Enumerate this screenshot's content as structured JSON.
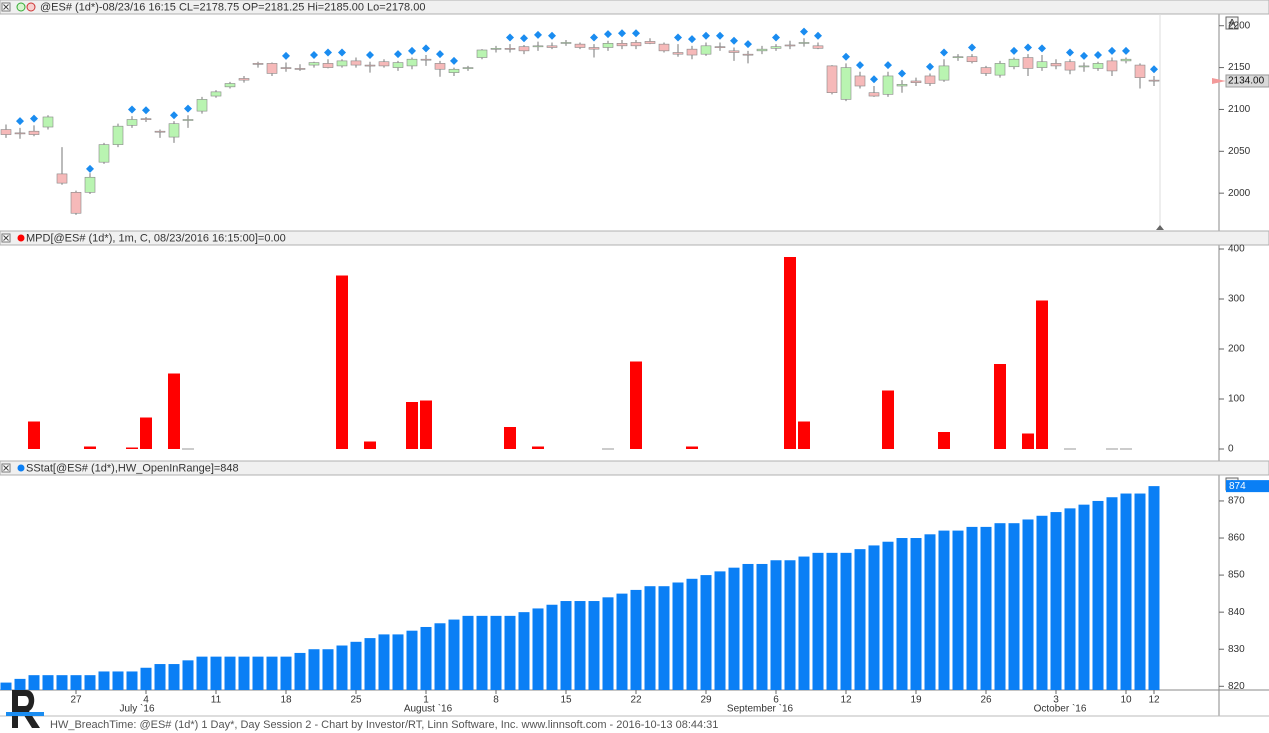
{
  "chart_data": [
    {
      "type": "candlestick",
      "title": "@ES# (1d*)-08/23/16 16:15 CL=2178.75 OP=2181.25 Hi=2185.00 Lo=2178.00",
      "autoscale_button": "A",
      "up_color": "#b9f4b1",
      "down_color": "#f6b9b9",
      "signal_color": "#1a8cf0",
      "open": [
        2076,
        2072,
        2074,
        2079,
        2023,
        2001,
        2001,
        2037,
        2058,
        2081,
        2089,
        2074,
        2067,
        2087,
        2098,
        2116,
        2127,
        2137,
        2155,
        2155,
        2150,
        2149,
        2153,
        2155,
        2152,
        2158,
        2153,
        2157,
        2150,
        2152,
        2160,
        2155,
        2144,
        2149,
        2162,
        2172,
        2173,
        2175,
        2175,
        2176,
        2179,
        2178,
        2174,
        2174,
        2179,
        2180,
        2181.25,
        2178,
        2168,
        2172,
        2166,
        2175,
        2170,
        2166,
        2170,
        2173,
        2177,
        2179,
        2176,
        2152,
        2112,
        2140,
        2120,
        2118,
        2128,
        2134,
        2140,
        2135,
        2162,
        2163,
        2150,
        2141,
        2151,
        2162,
        2150,
        2155,
        2157,
        2151,
        2149,
        2158,
        2158,
        2153,
        2135
      ],
      "high": [
        2082,
        2078,
        2081,
        2093,
        2055,
        2003,
        2024,
        2060,
        2083,
        2092,
        2091,
        2076,
        2086,
        2093,
        2115,
        2123,
        2133,
        2140,
        2157,
        2156,
        2156,
        2154,
        2157,
        2160,
        2160,
        2162,
        2157,
        2160,
        2158,
        2162,
        2165,
        2158,
        2150,
        2152,
        2172,
        2176,
        2178,
        2177,
        2181,
        2180,
        2183,
        2180,
        2178,
        2182,
        2183,
        2183,
        2185,
        2180,
        2178,
        2176,
        2180,
        2180,
        2174,
        2170,
        2176,
        2178,
        2182,
        2185,
        2180,
        2153,
        2155,
        2145,
        2128,
        2145,
        2135,
        2138,
        2143,
        2160,
        2166,
        2166,
        2152,
        2158,
        2162,
        2166,
        2165,
        2160,
        2160,
        2156,
        2157,
        2162,
        2162,
        2155,
        2140
      ],
      "low": [
        2066,
        2065,
        2068,
        2076,
        2010,
        1974,
        1999,
        2035,
        2055,
        2078,
        2085,
        2066,
        2060,
        2078,
        2095,
        2114,
        2125,
        2132,
        2150,
        2140,
        2145,
        2146,
        2150,
        2149,
        2150,
        2150,
        2144,
        2150,
        2146,
        2148,
        2152,
        2139,
        2140,
        2146,
        2160,
        2168,
        2168,
        2166,
        2170,
        2172,
        2176,
        2172,
        2162,
        2170,
        2172,
        2172,
        2178,
        2168,
        2163,
        2160,
        2164,
        2170,
        2158,
        2155,
        2166,
        2170,
        2172,
        2175,
        2172,
        2118,
        2110,
        2125,
        2115,
        2115,
        2120,
        2128,
        2128,
        2133,
        2158,
        2155,
        2140,
        2138,
        2148,
        2140,
        2146,
        2148,
        2142,
        2145,
        2146,
        2140,
        2155,
        2125,
        2128
      ],
      "close": [
        2070,
        2071,
        2070,
        2091,
        2012,
        1976,
        2019,
        2058,
        2080,
        2088,
        2088,
        2073,
        2083,
        2088,
        2112,
        2121,
        2131,
        2135,
        2154,
        2143,
        2149,
        2148,
        2156,
        2150,
        2158,
        2153,
        2152,
        2152,
        2156,
        2160,
        2159,
        2148,
        2148,
        2150,
        2171,
        2173,
        2172,
        2170,
        2176,
        2174,
        2180,
        2174,
        2172,
        2179,
        2176,
        2176,
        2178.75,
        2170,
        2166,
        2165,
        2176,
        2174,
        2168,
        2165,
        2172,
        2175,
        2176,
        2180,
        2173,
        2120,
        2150,
        2128,
        2116,
        2140,
        2130,
        2132,
        2131,
        2152,
        2163,
        2157,
        2143,
        2155,
        2160,
        2149,
        2157,
        2152,
        2147,
        2152,
        2155,
        2146,
        2160,
        2138,
        2134
      ],
      "last_close_label": "2134.00",
      "signals": [
        null,
        2086,
        2089,
        null,
        null,
        null,
        2029,
        null,
        null,
        2100,
        2099,
        null,
        2093,
        2101,
        null,
        null,
        null,
        null,
        null,
        null,
        2164,
        null,
        2165,
        2168,
        2168,
        null,
        2165,
        null,
        2166,
        2170,
        2173,
        2166,
        2158,
        null,
        null,
        null,
        2186,
        2185,
        2189,
        2188,
        null,
        null,
        2186,
        2190,
        2191,
        2191,
        null,
        null,
        2186,
        2184,
        2188,
        2188,
        2182,
        2178,
        null,
        2186,
        null,
        2193,
        2188,
        null,
        2163,
        2153,
        2136,
        2153,
        2143,
        null,
        2151,
        2168,
        null,
        2174,
        null,
        null,
        2170,
        2174,
        2173,
        null,
        2168,
        2164,
        2165,
        2170,
        2170,
        null,
        2148
      ],
      "ylim": [
        1956,
        2214
      ],
      "yticks": [
        2000,
        2050,
        2100,
        2150,
        2200
      ]
    },
    {
      "type": "bar",
      "title": "MPD[@ES# (1d*), 1m, C, 08/23/2016 16:15:00]=0.00",
      "color": "#ff0000",
      "zero_color": "#999999",
      "values": [
        null,
        null,
        55,
        null,
        null,
        null,
        5,
        null,
        null,
        3,
        63,
        null,
        151,
        0,
        null,
        null,
        null,
        null,
        null,
        null,
        null,
        null,
        null,
        null,
        347,
        null,
        15,
        null,
        null,
        94,
        97,
        null,
        null,
        null,
        null,
        null,
        44,
        null,
        5,
        null,
        null,
        null,
        null,
        0,
        null,
        175,
        null,
        null,
        null,
        5,
        null,
        null,
        null,
        null,
        null,
        null,
        384,
        55,
        null,
        null,
        null,
        null,
        null,
        117,
        null,
        null,
        null,
        34,
        null,
        null,
        null,
        170,
        null,
        31,
        297,
        null,
        0,
        null,
        null,
        0,
        0,
        null,
        null
      ],
      "ylim": [
        -18,
        408
      ],
      "yticks": [
        0,
        100,
        200,
        300,
        400
      ]
    },
    {
      "type": "bar",
      "title": "SStat[@ES# (1d*),HW_OpenInRange]=848",
      "autoscale_button": "A",
      "color": "#0a7ff5",
      "values": [
        821,
        822,
        823,
        823,
        823,
        823,
        823,
        824,
        824,
        824,
        825,
        826,
        826,
        827,
        828,
        828,
        828,
        828,
        828,
        828,
        828,
        829,
        830,
        830,
        831,
        832,
        833,
        834,
        834,
        835,
        836,
        837,
        838,
        839,
        839,
        839,
        839,
        840,
        841,
        842,
        843,
        843,
        843,
        844,
        845,
        846,
        847,
        847,
        848,
        849,
        850,
        851,
        852,
        853,
        853,
        854,
        854,
        855,
        856,
        856,
        856,
        857,
        858,
        859,
        860,
        860,
        861,
        862,
        862,
        863,
        863,
        864,
        864,
        865,
        866,
        867,
        868,
        869,
        870,
        871,
        872,
        872,
        874
      ],
      "ylim": [
        819,
        877
      ],
      "yticks": [
        820,
        830,
        840,
        850,
        860,
        870
      ],
      "categories": [
        null,
        null,
        null,
        null,
        null,
        "27",
        null,
        null,
        null,
        null,
        "4",
        null,
        null,
        null,
        null,
        "11",
        null,
        null,
        null,
        null,
        "18",
        null,
        null,
        null,
        null,
        "25",
        null,
        null,
        null,
        null,
        "1",
        null,
        null,
        null,
        null,
        "8",
        null,
        null,
        null,
        null,
        "15",
        null,
        null,
        null,
        null,
        "22",
        null,
        null,
        null,
        null,
        "29",
        null,
        null,
        null,
        null,
        "6",
        null,
        null,
        null,
        null,
        "12",
        null,
        null,
        null,
        null,
        "19",
        null,
        null,
        null,
        null,
        "26",
        null,
        null,
        null,
        null,
        "3",
        null,
        null,
        null,
        null,
        "10",
        null,
        "12"
      ],
      "months": [
        "July `16",
        "August `16",
        "September `16",
        "October `16"
      ]
    }
  ],
  "footer": "HW_BreachTime: @ES# (1d*) 1 Day*, Day Session 2 - Chart by Investor/RT, Linn Software, Inc. www.linnsoft.com - 2016-10-13 08:44:31"
}
